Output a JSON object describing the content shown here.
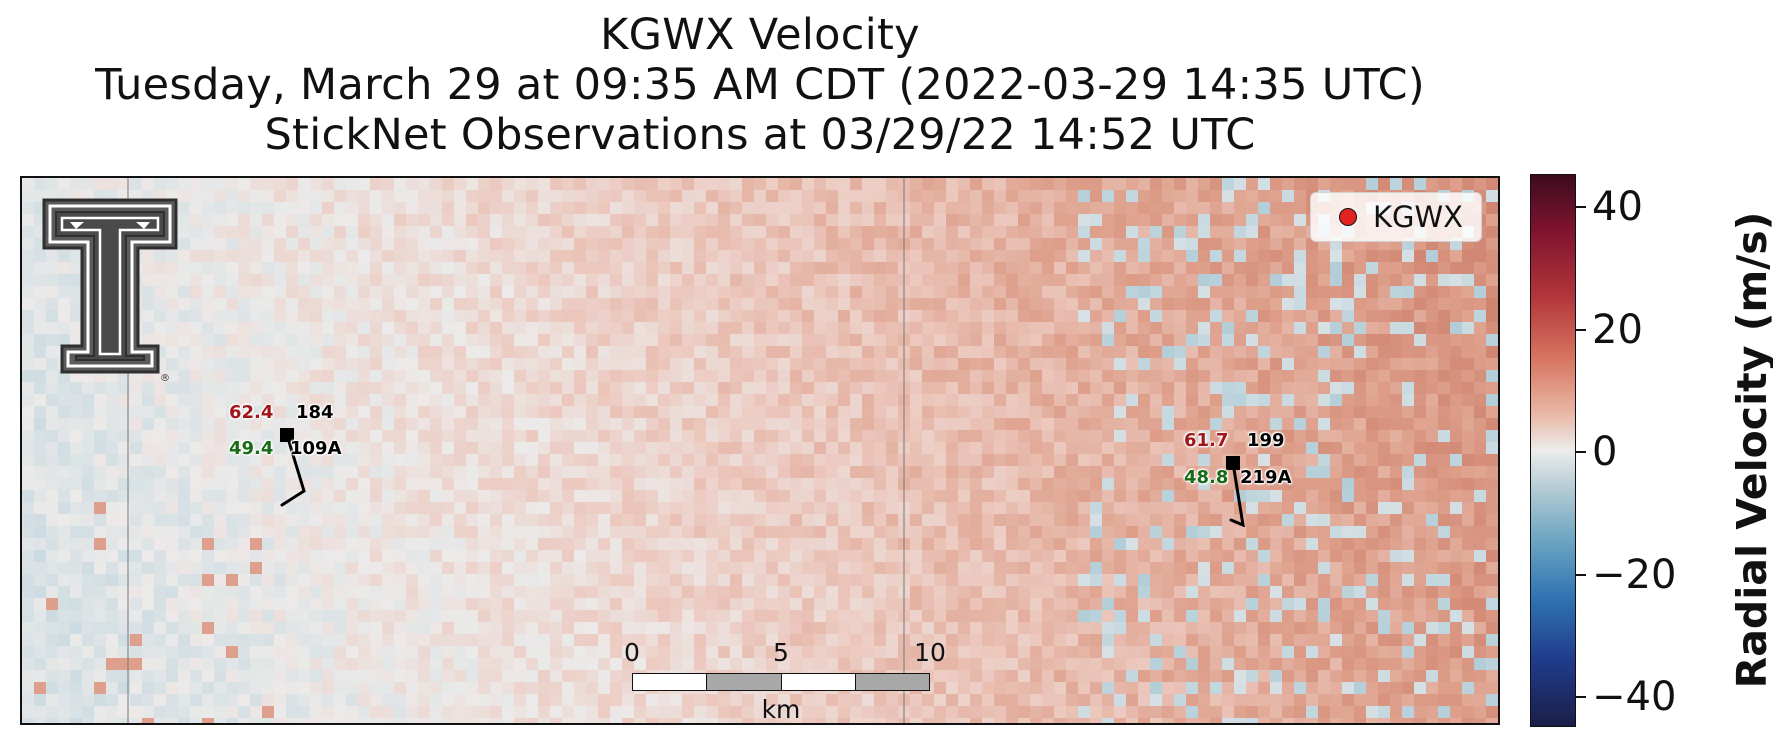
{
  "title": {
    "line1": "KGWX Velocity",
    "line2": "Tuesday, March 29 at 09:35 AM CDT (2022-03-29 14:35 UTC)",
    "line3": "StickNet Observations at 03/29/22 14:52 UTC"
  },
  "legend": {
    "label": "KGWX",
    "marker_color": "#e32222"
  },
  "stations": [
    {
      "temperature": "62.4",
      "dewpoint": "49.4",
      "wind_direction": "184",
      "name": "109A"
    },
    {
      "temperature": "61.7",
      "dewpoint": "48.8",
      "wind_direction": "199",
      "name": "219A"
    }
  ],
  "scale_bar": {
    "ticks": [
      "0",
      "5",
      "10"
    ],
    "unit": "km"
  },
  "colorbar": {
    "title": "Radial Velocity (m/s)",
    "ticks": [
      "40",
      "20",
      "0",
      "−20",
      "−40"
    ],
    "range": [
      -45,
      45
    ],
    "colormap": "blue-white-red (balance)"
  },
  "logo": {
    "name": "Texas Tech Double T",
    "registered_mark": "®"
  }
}
